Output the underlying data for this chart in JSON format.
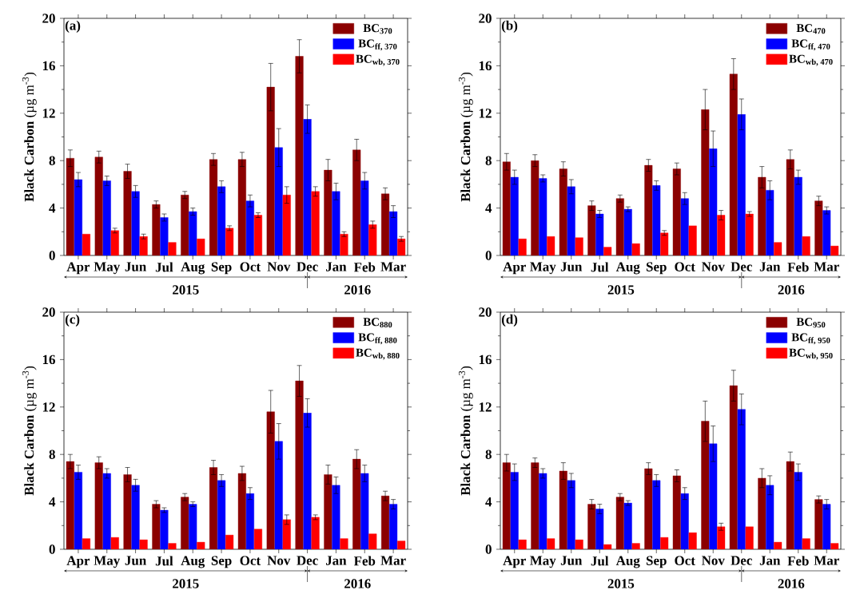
{
  "chart_data": [
    {
      "type": "bar",
      "categories": [
        "Apr",
        "May",
        "Jun",
        "Jul",
        "Aug",
        "Sep",
        "Oct",
        "Nov",
        "Dec",
        "Jan",
        "Feb",
        "Mar"
      ],
      "ylabel": "**Black Carbon** (µg m$^{-3}$)",
      "ylim": [
        0,
        20
      ],
      "yticks": [
        0,
        4,
        8,
        12,
        16,
        20
      ],
      "legend": "top right",
      "annotations": [
        "(a)",
        "2015",
        "2016"
      ],
      "series": [
        {
          "name": "BC$_{370}$",
          "color": "#8b0000",
          "values": [
            8.2,
            8.3,
            7.1,
            4.3,
            5.1,
            8.1,
            8.1,
            14.2,
            16.8,
            7.2,
            8.9,
            5.2
          ],
          "errors": [
            0.7,
            0.5,
            0.6,
            0.3,
            0.3,
            0.5,
            0.6,
            2.0,
            1.4,
            0.9,
            0.9,
            0.5
          ]
        },
        {
          "name": "BC$_{ff, 370}$",
          "color": "#0000ff",
          "values": [
            6.4,
            6.3,
            5.4,
            3.2,
            3.7,
            5.8,
            4.6,
            9.1,
            11.5,
            5.4,
            6.3,
            3.7
          ],
          "errors": [
            0.6,
            0.4,
            0.5,
            0.3,
            0.3,
            0.5,
            0.5,
            1.6,
            1.2,
            0.7,
            0.7,
            0.5
          ]
        },
        {
          "name": "BC$_{wb, 370}$",
          "color": "#ff0000",
          "values": [
            1.8,
            2.1,
            1.6,
            1.1,
            1.4,
            2.3,
            3.4,
            5.1,
            5.4,
            1.8,
            2.6,
            1.4
          ],
          "errors": [
            null,
            0.2,
            0.2,
            null,
            null,
            0.2,
            0.2,
            0.7,
            0.4,
            0.2,
            0.3,
            0.2
          ]
        }
      ]
    },
    {
      "type": "bar",
      "categories": [
        "Apr",
        "May",
        "Jun",
        "Jul",
        "Aug",
        "Sep",
        "Oct",
        "Nov",
        "Dec",
        "Jan",
        "Feb",
        "Mar"
      ],
      "ylabel": "**Black Carbon** (µg m$^{-3}$)",
      "ylim": [
        0,
        20
      ],
      "yticks": [
        0,
        4,
        8,
        12,
        16,
        20
      ],
      "legend": "top right",
      "annotations": [
        "(b)",
        "2015",
        "2016"
      ],
      "series": [
        {
          "name": "BC$_{470}$",
          "color": "#8b0000",
          "values": [
            7.9,
            8.0,
            7.3,
            4.2,
            4.8,
            7.6,
            7.3,
            12.3,
            15.3,
            6.6,
            8.1,
            4.6
          ],
          "errors": [
            0.7,
            0.5,
            0.6,
            0.4,
            0.3,
            0.5,
            0.5,
            1.7,
            1.3,
            0.9,
            0.8,
            0.4
          ]
        },
        {
          "name": "BC$_{ff, 470}$",
          "color": "#0000ff",
          "values": [
            6.6,
            6.5,
            5.8,
            3.5,
            3.9,
            5.9,
            4.8,
            9.0,
            11.9,
            5.5,
            6.6,
            3.8
          ],
          "errors": [
            0.6,
            0.3,
            0.6,
            0.3,
            0.2,
            0.4,
            0.5,
            1.5,
            1.3,
            0.8,
            0.6,
            0.3
          ]
        },
        {
          "name": "BC$_{wb, 470}$",
          "color": "#ff0000",
          "values": [
            1.4,
            1.6,
            1.5,
            0.7,
            1.0,
            1.9,
            2.5,
            3.4,
            3.5,
            1.1,
            1.6,
            0.8
          ],
          "errors": [
            null,
            null,
            null,
            null,
            null,
            0.2,
            null,
            0.4,
            0.2,
            null,
            null,
            null
          ]
        }
      ]
    },
    {
      "type": "bar",
      "categories": [
        "Apr",
        "May",
        "Jun",
        "Jul",
        "Aug",
        "Sep",
        "Oct",
        "Nov",
        "Dec",
        "Jan",
        "Feb",
        "Mar"
      ],
      "ylabel": "**Black Carbon** (µg m$^{-3}$)",
      "ylim": [
        0,
        20
      ],
      "yticks": [
        0,
        4,
        8,
        12,
        16,
        20
      ],
      "legend": "top right",
      "annotations": [
        "(c)",
        "2015",
        "2016"
      ],
      "series": [
        {
          "name": "BC$_{880}$",
          "color": "#8b0000",
          "values": [
            7.4,
            7.3,
            6.3,
            3.8,
            4.4,
            6.9,
            6.4,
            11.6,
            14.2,
            6.3,
            7.6,
            4.5
          ],
          "errors": [
            0.6,
            0.5,
            0.6,
            0.3,
            0.3,
            0.6,
            0.6,
            1.8,
            1.3,
            0.8,
            0.8,
            0.4
          ]
        },
        {
          "name": "BC$_{ff, 880}$",
          "color": "#0000ff",
          "values": [
            6.5,
            6.4,
            5.4,
            3.3,
            3.8,
            5.8,
            4.7,
            9.1,
            11.5,
            5.4,
            6.4,
            3.8
          ],
          "errors": [
            0.6,
            0.4,
            0.5,
            0.2,
            0.2,
            0.5,
            0.5,
            1.5,
            1.2,
            0.7,
            0.7,
            0.4
          ]
        },
        {
          "name": "BC$_{wb, 880}$",
          "color": "#ff0000",
          "values": [
            0.9,
            1.0,
            0.8,
            0.5,
            0.6,
            1.2,
            1.7,
            2.5,
            2.7,
            0.9,
            1.3,
            0.7
          ],
          "errors": [
            null,
            null,
            null,
            null,
            null,
            null,
            null,
            0.4,
            0.2,
            null,
            null,
            null
          ]
        }
      ]
    },
    {
      "type": "bar",
      "categories": [
        "Apr",
        "May",
        "Jun",
        "Jul",
        "Aug",
        "Sep",
        "Oct",
        "Nov",
        "Dec",
        "Jan",
        "Feb",
        "Mar"
      ],
      "ylabel": "**Black Carbon** (µg m$^{-3}$)",
      "ylim": [
        0,
        20
      ],
      "yticks": [
        0,
        4,
        8,
        12,
        16,
        20
      ],
      "legend": "top right",
      "annotations": [
        "(d)",
        "2015",
        "2016"
      ],
      "series": [
        {
          "name": "BC$_{950}$",
          "color": "#8b0000",
          "values": [
            7.3,
            7.3,
            6.6,
            3.8,
            4.4,
            6.8,
            6.2,
            10.8,
            13.8,
            6.0,
            7.4,
            4.2
          ],
          "errors": [
            0.7,
            0.4,
            0.7,
            0.4,
            0.3,
            0.5,
            0.5,
            1.7,
            1.3,
            0.8,
            0.8,
            0.3
          ]
        },
        {
          "name": "BC$_{ff, 950}$",
          "color": "#0000ff",
          "values": [
            6.5,
            6.4,
            5.8,
            3.4,
            3.9,
            5.8,
            4.7,
            8.9,
            11.8,
            5.4,
            6.5,
            3.8
          ],
          "errors": [
            0.7,
            0.4,
            0.6,
            0.4,
            0.2,
            0.5,
            0.5,
            1.5,
            1.3,
            0.8,
            0.7,
            0.4
          ]
        },
        {
          "name": "BC$_{wb, 950}$",
          "color": "#ff0000",
          "values": [
            0.8,
            0.9,
            0.8,
            0.4,
            0.5,
            1.0,
            1.4,
            1.9,
            1.9,
            0.6,
            0.9,
            0.5
          ],
          "errors": [
            null,
            null,
            null,
            null,
            null,
            null,
            null,
            0.3,
            null,
            null,
            null,
            null
          ]
        }
      ]
    }
  ]
}
